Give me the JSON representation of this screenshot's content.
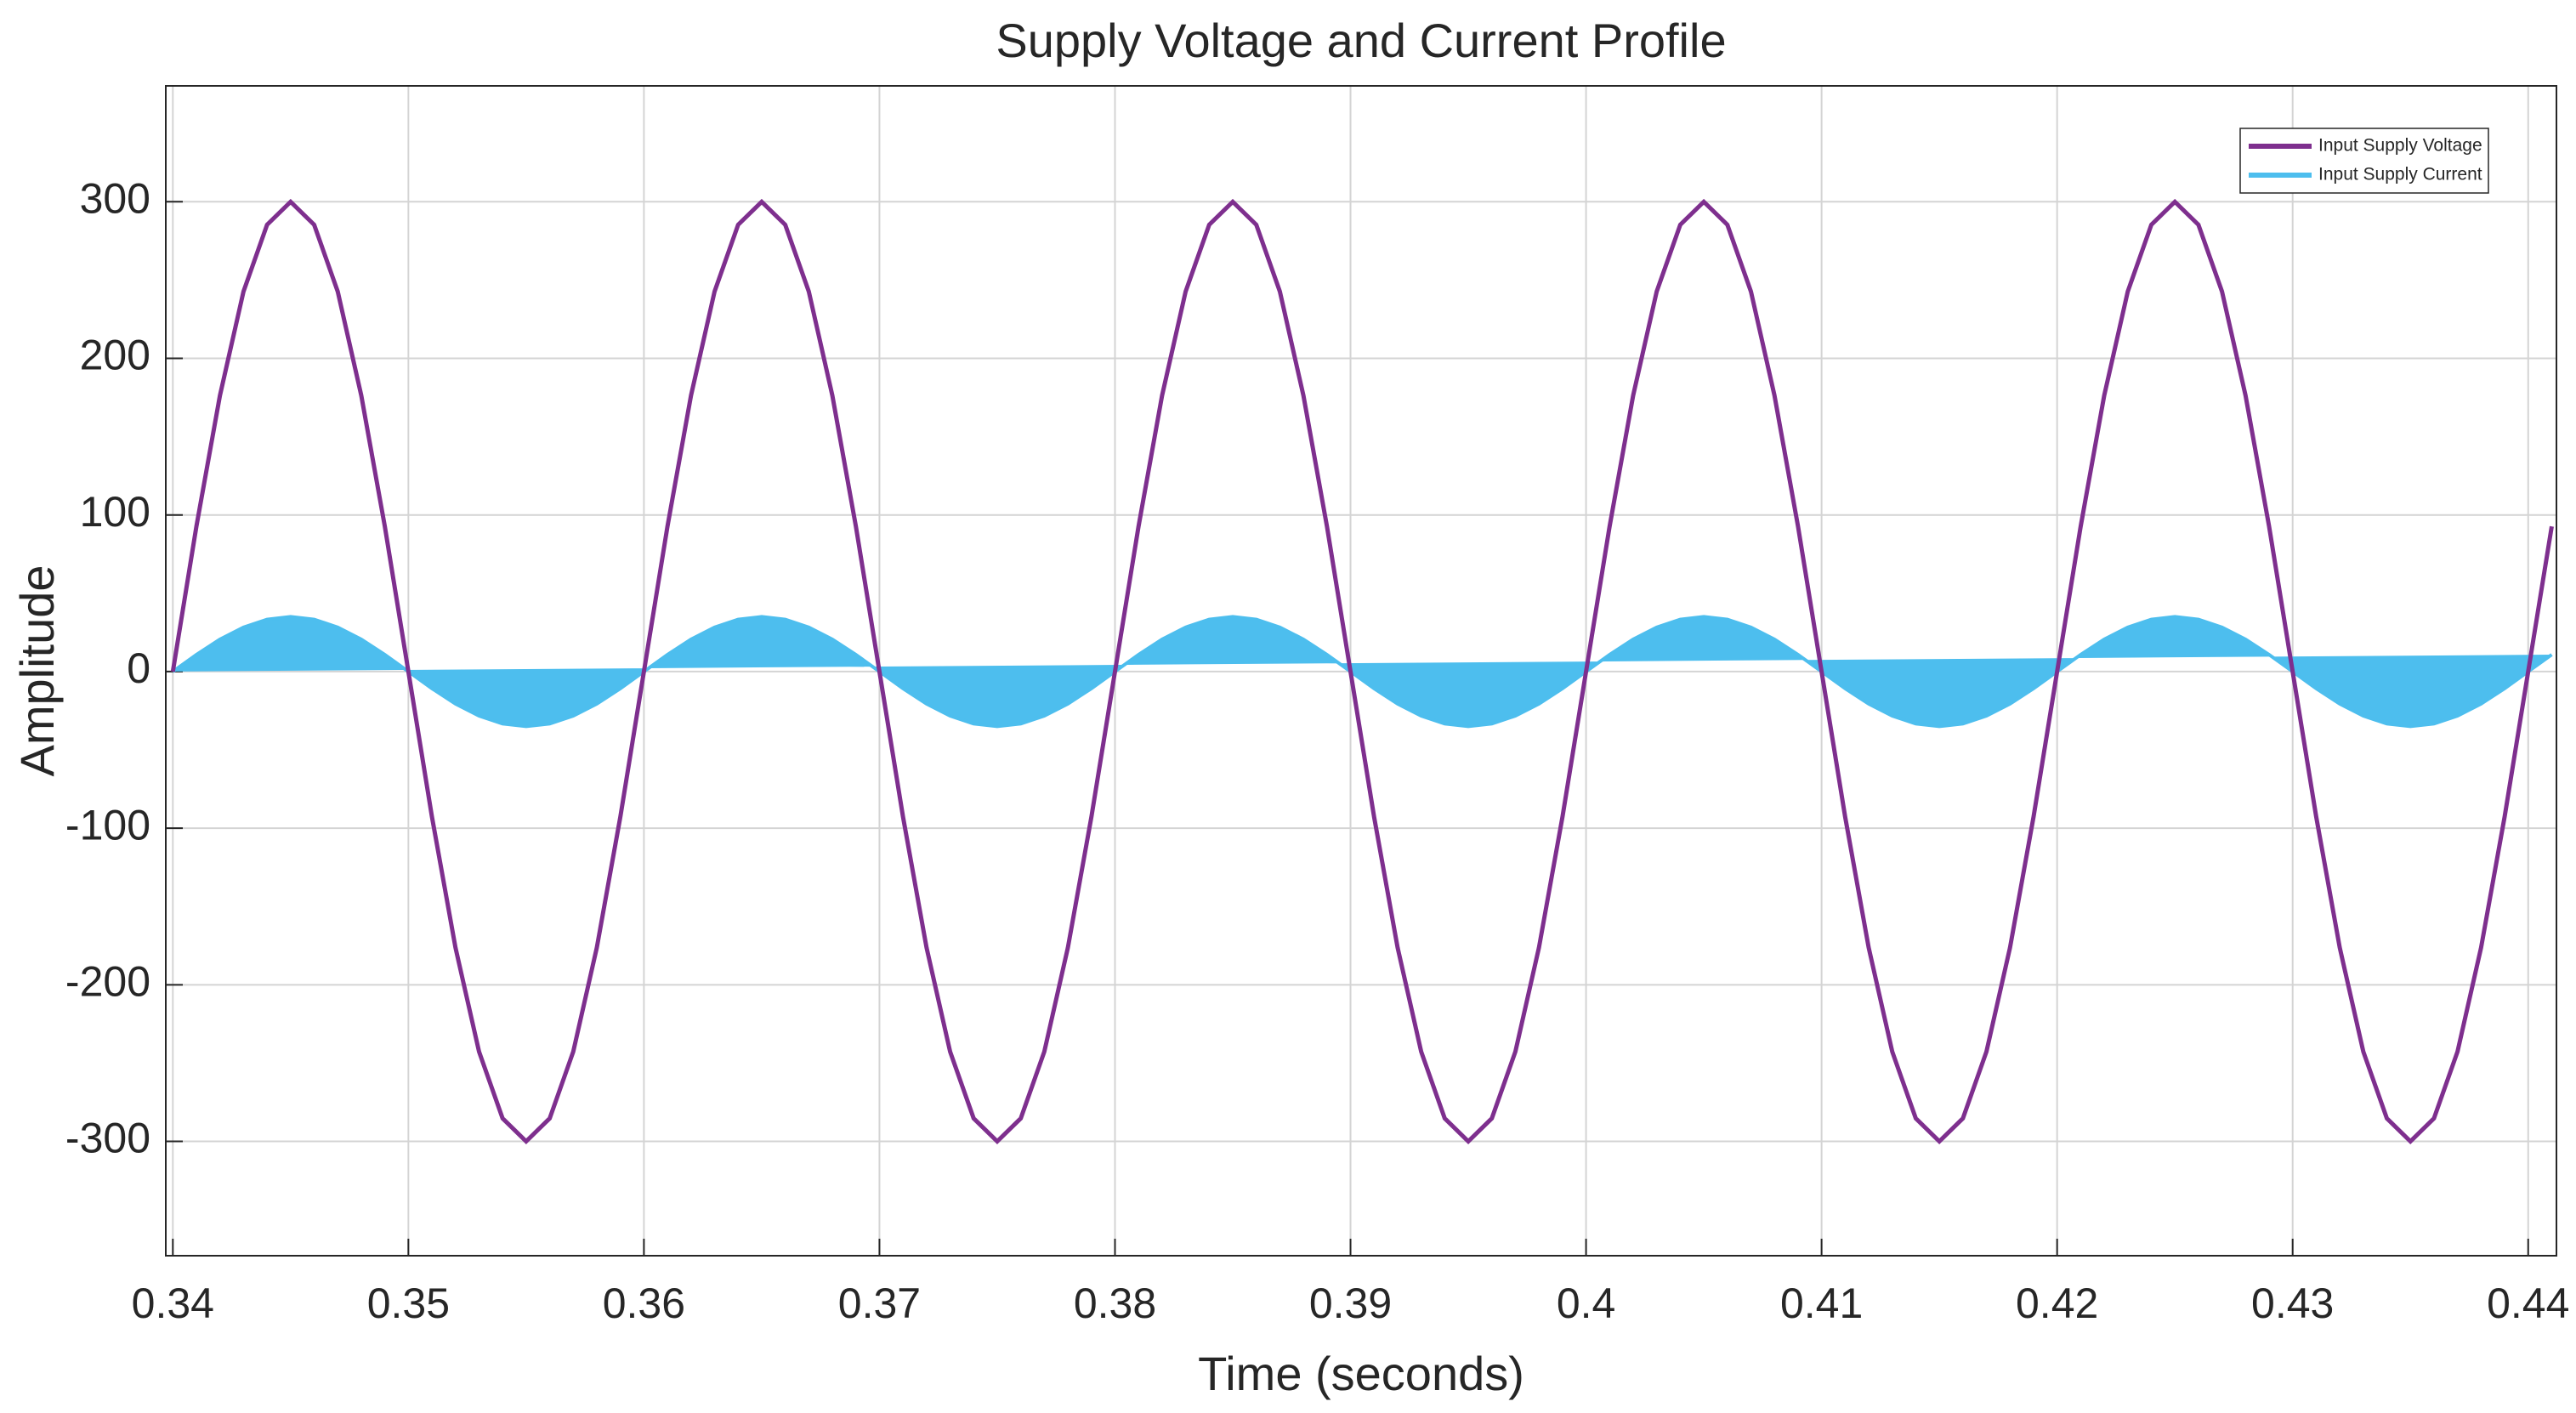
{
  "chart_data": {
    "type": "line",
    "title": "Supply Voltage and Current Profile",
    "x_label": "Time (seconds)",
    "y_label": "Amplitude",
    "x": [
      0.34,
      0.341,
      0.342,
      0.343,
      0.344,
      0.345,
      0.346,
      0.347,
      0.348,
      0.349,
      0.35,
      0.351,
      0.352,
      0.353,
      0.354,
      0.355,
      0.356,
      0.357,
      0.358,
      0.359,
      0.36,
      0.361,
      0.362,
      0.363,
      0.364,
      0.365,
      0.366,
      0.367,
      0.368,
      0.369,
      0.37,
      0.371,
      0.372,
      0.373,
      0.374,
      0.375,
      0.376,
      0.377,
      0.378,
      0.379,
      0.38,
      0.381,
      0.382,
      0.383,
      0.384,
      0.385,
      0.386,
      0.387,
      0.388,
      0.389,
      0.39,
      0.391,
      0.392,
      0.393,
      0.394,
      0.395,
      0.396,
      0.397,
      0.398,
      0.399,
      0.4,
      0.401,
      0.402,
      0.403,
      0.404,
      0.405,
      0.406,
      0.407,
      0.408,
      0.409,
      0.41,
      0.411,
      0.412,
      0.413,
      0.414,
      0.415,
      0.416,
      0.417,
      0.418,
      0.419,
      0.42,
      0.421,
      0.422,
      0.423,
      0.424,
      0.425,
      0.426,
      0.427,
      0.428,
      0.429,
      0.43,
      0.431,
      0.432,
      0.433,
      0.434,
      0.435,
      0.436,
      0.437,
      0.438,
      0.439,
      0.44,
      0.441
    ],
    "series": [
      {
        "name": "Input Supply Voltage",
        "color": "#7e2f8e",
        "style": "line",
        "values": [
          0,
          92.7,
          176.3,
          242.7,
          285.3,
          300,
          285.3,
          242.7,
          176.3,
          92.7,
          0,
          -92.7,
          -176.3,
          -242.7,
          -285.3,
          -300,
          -285.3,
          -242.7,
          -176.3,
          -92.7,
          0,
          92.7,
          176.3,
          242.7,
          285.3,
          300,
          285.3,
          242.7,
          176.3,
          92.7,
          0,
          -92.7,
          -176.3,
          -242.7,
          -285.3,
          -300,
          -285.3,
          -242.7,
          -176.3,
          -92.7,
          0,
          92.7,
          176.3,
          242.7,
          285.3,
          300,
          285.3,
          242.7,
          176.3,
          92.7,
          0,
          -92.7,
          -176.3,
          -242.7,
          -285.3,
          -300,
          -285.3,
          -242.7,
          -176.3,
          -92.7,
          0,
          92.7,
          176.3,
          242.7,
          285.3,
          300,
          285.3,
          242.7,
          176.3,
          92.7,
          0,
          -92.7,
          -176.3,
          -242.7,
          -285.3,
          -300,
          -285.3,
          -242.7,
          -176.3,
          -92.7,
          0,
          92.7,
          176.3,
          242.7,
          285.3,
          300,
          285.3,
          242.7,
          176.3,
          92.7,
          0,
          -92.7,
          -176.3,
          -242.7,
          -285.3,
          -300,
          -285.3,
          -242.7,
          -176.3,
          -92.7,
          0,
          92.7
        ]
      },
      {
        "name": "Input Supply Current",
        "color": "#4dbeee",
        "style": "area",
        "values": [
          0,
          10.8,
          20.6,
          28.3,
          33.3,
          35,
          33.3,
          28.3,
          20.6,
          10.8,
          0,
          -10.8,
          -20.6,
          -28.3,
          -33.3,
          -35,
          -33.3,
          -28.3,
          -20.6,
          -10.8,
          0,
          10.8,
          20.6,
          28.3,
          33.3,
          35,
          33.3,
          28.3,
          20.6,
          10.8,
          0,
          -10.8,
          -20.6,
          -28.3,
          -33.3,
          -35,
          -33.3,
          -28.3,
          -20.6,
          -10.8,
          0,
          10.8,
          20.6,
          28.3,
          33.3,
          35,
          33.3,
          28.3,
          20.6,
          10.8,
          0,
          -10.8,
          -20.6,
          -28.3,
          -33.3,
          -35,
          -33.3,
          -28.3,
          -20.6,
          -10.8,
          0,
          10.8,
          20.6,
          28.3,
          33.3,
          35,
          33.3,
          28.3,
          20.6,
          10.8,
          0,
          -10.8,
          -20.6,
          -28.3,
          -33.3,
          -35,
          -33.3,
          -28.3,
          -20.6,
          -10.8,
          0,
          10.8,
          20.6,
          28.3,
          33.3,
          35,
          33.3,
          28.3,
          20.6,
          10.8,
          0,
          -10.8,
          -20.6,
          -28.3,
          -33.3,
          -35,
          -33.3,
          -28.3,
          -20.6,
          -10.8,
          0,
          10.8
        ]
      }
    ],
    "xlim": [
      0.3397,
      0.4412
    ],
    "xticks": [
      0.34,
      0.35,
      0.36,
      0.37,
      0.38,
      0.39,
      0.4,
      0.41,
      0.42,
      0.43,
      0.44
    ],
    "ylim": [
      -373,
      374
    ],
    "yticks": [
      -300,
      -200,
      -100,
      0,
      100,
      200,
      300
    ],
    "grid": true,
    "legend": "upper right"
  }
}
